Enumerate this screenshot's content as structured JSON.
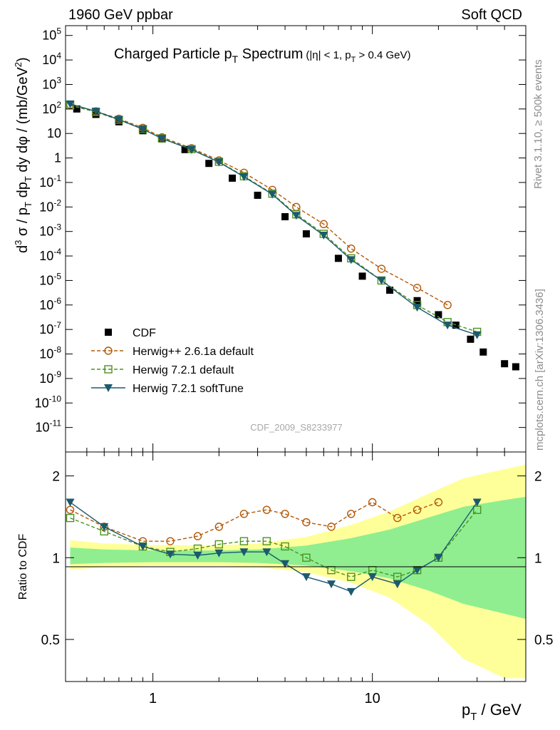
{
  "header": {
    "left_label": "1960 GeV ppbar",
    "right_label": "Soft QCD"
  },
  "side_labels": {
    "rivet": "Rivet 3.1.10, ≥ 500k events",
    "mcplots": "mcplots.cern.ch [arXiv:1306.3436]"
  },
  "watermark": "CDF_2009_S8233977",
  "chart_data": {
    "type": "line",
    "title": "Charged Particle pT Spectrum",
    "title_main": "Charged Particle p",
    "title_sub": "T",
    "title_main2": " Spectrum",
    "title_cut": "(|η| < 1, p",
    "title_cut_sub": "T",
    "title_cut2": " > 0.4 GeV)",
    "xlabel": "pT / GeV",
    "xlabel_main": "p",
    "xlabel_sub": "T",
    "xlabel_unit": " / GeV",
    "ylabel": "d3 σ / pT dpT dy dφ / (mb/GeV2)",
    "ratio_ylabel": "Ratio to CDF",
    "xscale": "log",
    "xlim": [
      0.4,
      50
    ],
    "ylim_log10": [
      -12,
      5.4
    ],
    "ratio_ylim": [
      0.35,
      2.45
    ],
    "x_ticks": [
      {
        "v": 1,
        "label": "1"
      },
      {
        "v": 10,
        "label": "10"
      }
    ],
    "y_ticks": [
      {
        "e": 5,
        "base": "10",
        "exp": "5"
      },
      {
        "e": 4,
        "base": "10",
        "exp": "4"
      },
      {
        "e": 3,
        "base": "10",
        "exp": "3"
      },
      {
        "e": 2,
        "base": "10",
        "exp": "2"
      },
      {
        "e": 1,
        "base": "10",
        "exp": ""
      },
      {
        "e": 0,
        "base": "1",
        "exp": ""
      },
      {
        "e": -1,
        "base": "10",
        "exp": "-1"
      },
      {
        "e": -2,
        "base": "10",
        "exp": "-2"
      },
      {
        "e": -3,
        "base": "10",
        "exp": "-3"
      },
      {
        "e": -4,
        "base": "10",
        "exp": "-4"
      },
      {
        "e": -5,
        "base": "10",
        "exp": "-5"
      },
      {
        "e": -6,
        "base": "10",
        "exp": "-6"
      },
      {
        "e": -7,
        "base": "10",
        "exp": "-7"
      },
      {
        "e": -8,
        "base": "10",
        "exp": "-8"
      },
      {
        "e": -9,
        "base": "10",
        "exp": "-9"
      },
      {
        "e": -10,
        "base": "10",
        "exp": "-10"
      },
      {
        "e": -11,
        "base": "10",
        "exp": "-11"
      }
    ],
    "ratio_ticks": [
      {
        "v": 2,
        "label": "2"
      },
      {
        "v": 1,
        "label": "1"
      },
      {
        "v": 0.5,
        "label": "0.5"
      }
    ],
    "legend_position": "lower-left",
    "series": [
      {
        "name": "CDF",
        "color": "#000000",
        "marker": "square",
        "points": [
          [
            0.45,
            100
          ],
          [
            0.55,
            60
          ],
          [
            0.7,
            30
          ],
          [
            0.9,
            13
          ],
          [
            1.1,
            6
          ],
          [
            1.4,
            2.2
          ],
          [
            1.8,
            0.6
          ],
          [
            2.3,
            0.15
          ],
          [
            3.0,
            0.03
          ],
          [
            4.0,
            0.004
          ],
          [
            5.0,
            0.0008
          ],
          [
            7.0,
            8e-05
          ],
          [
            9.0,
            1.5e-05
          ],
          [
            12.0,
            4e-06
          ],
          [
            16.0,
            1.5e-06
          ],
          [
            20.0,
            4e-07
          ],
          [
            24.0,
            1.5e-07
          ],
          [
            28.0,
            4e-08
          ],
          [
            32.0,
            1.2e-08
          ],
          [
            40.0,
            4e-09
          ],
          [
            45.0,
            3e-09
          ]
        ]
      },
      {
        "name": "Herwig++ 2.6.1a default",
        "color": "#b35806",
        "marker": "circle",
        "points": [
          [
            0.42,
            150
          ],
          [
            0.55,
            80
          ],
          [
            0.7,
            40
          ],
          [
            0.9,
            17
          ],
          [
            1.1,
            7
          ],
          [
            1.5,
            2.5
          ],
          [
            2.0,
            0.8
          ],
          [
            2.6,
            0.25
          ],
          [
            3.5,
            0.05
          ],
          [
            4.5,
            0.01
          ],
          [
            6.0,
            0.002
          ],
          [
            8.0,
            0.0002
          ],
          [
            11.0,
            3e-05
          ],
          [
            16.0,
            5e-06
          ],
          [
            22.0,
            1e-06
          ]
        ],
        "ratio": [
          [
            0.42,
            1.5
          ],
          [
            0.6,
            1.3
          ],
          [
            0.9,
            1.15
          ],
          [
            1.2,
            1.15
          ],
          [
            1.6,
            1.2
          ],
          [
            2.0,
            1.3
          ],
          [
            2.6,
            1.45
          ],
          [
            3.3,
            1.5
          ],
          [
            4.0,
            1.45
          ],
          [
            5.0,
            1.35
          ],
          [
            6.5,
            1.3
          ],
          [
            8.0,
            1.45
          ],
          [
            10.0,
            1.6
          ],
          [
            13.0,
            1.4
          ],
          [
            16.0,
            1.5
          ],
          [
            20.0,
            1.6
          ]
        ]
      },
      {
        "name": "Herwig 7.2.1 default",
        "color": "#4d9221",
        "marker": "square-open",
        "points": [
          [
            0.42,
            140
          ],
          [
            0.55,
            75
          ],
          [
            0.7,
            36
          ],
          [
            0.9,
            15
          ],
          [
            1.1,
            6.3
          ],
          [
            1.5,
            2.3
          ],
          [
            2.0,
            0.7
          ],
          [
            2.6,
            0.18
          ],
          [
            3.5,
            0.035
          ],
          [
            4.5,
            0.005
          ],
          [
            6.0,
            0.0008
          ],
          [
            8.0,
            8e-05
          ],
          [
            11.0,
            1e-05
          ],
          [
            16.0,
            1e-06
          ],
          [
            22.0,
            2e-07
          ],
          [
            30.0,
            8e-08
          ]
        ],
        "ratio": [
          [
            0.42,
            1.4
          ],
          [
            0.6,
            1.25
          ],
          [
            0.9,
            1.1
          ],
          [
            1.2,
            1.05
          ],
          [
            1.6,
            1.08
          ],
          [
            2.0,
            1.12
          ],
          [
            2.6,
            1.15
          ],
          [
            3.3,
            1.15
          ],
          [
            4.0,
            1.1
          ],
          [
            5.0,
            1.0
          ],
          [
            6.5,
            0.9
          ],
          [
            8.0,
            0.85
          ],
          [
            10.0,
            0.9
          ],
          [
            13.0,
            0.85
          ],
          [
            16.0,
            0.9
          ],
          [
            20.0,
            1.0
          ],
          [
            30.0,
            1.5
          ]
        ]
      },
      {
        "name": "Herwig 7.2.1 softTune",
        "color": "#1c5a6e",
        "marker": "triangle-down",
        "points": [
          [
            0.42,
            160
          ],
          [
            0.55,
            80
          ],
          [
            0.7,
            37
          ],
          [
            0.9,
            15
          ],
          [
            1.1,
            6.2
          ],
          [
            1.5,
            2.2
          ],
          [
            2.0,
            0.68
          ],
          [
            2.6,
            0.17
          ],
          [
            3.5,
            0.033
          ],
          [
            4.5,
            0.0045
          ],
          [
            6.0,
            0.0007
          ],
          [
            8.0,
            7e-05
          ],
          [
            11.0,
            1e-05
          ],
          [
            16.0,
            8e-07
          ],
          [
            22.0,
            1.5e-07
          ],
          [
            30.0,
            6e-08
          ]
        ],
        "ratio": [
          [
            0.42,
            1.6
          ],
          [
            0.6,
            1.3
          ],
          [
            0.9,
            1.1
          ],
          [
            1.2,
            1.03
          ],
          [
            1.6,
            1.02
          ],
          [
            2.0,
            1.04
          ],
          [
            2.6,
            1.05
          ],
          [
            3.3,
            1.05
          ],
          [
            4.0,
            0.95
          ],
          [
            5.0,
            0.85
          ],
          [
            6.5,
            0.8
          ],
          [
            8.0,
            0.75
          ],
          [
            10.0,
            0.85
          ],
          [
            13.0,
            0.8
          ],
          [
            16.0,
            0.9
          ],
          [
            20.0,
            1.0
          ],
          [
            30.0,
            1.6
          ]
        ]
      }
    ]
  },
  "colors": {
    "band_inner": "#90ee90",
    "band_outer": "#ffff99"
  }
}
